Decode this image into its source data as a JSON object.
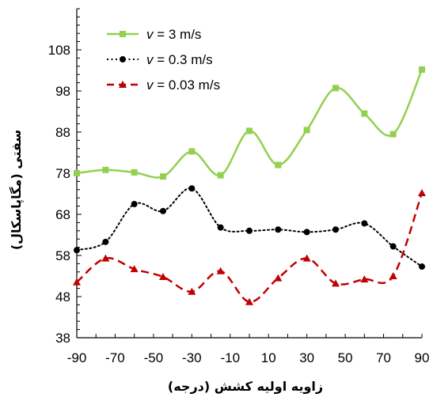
{
  "chart_data": {
    "type": "line",
    "xlabel": "زاویه اولیه کشش (درجه)",
    "ylabel": "سفتی (مگاپاسکال)",
    "xlim": [
      -90,
      90
    ],
    "ylim": [
      38,
      118
    ],
    "xticks": [
      -90,
      -70,
      -50,
      -30,
      -10,
      10,
      30,
      50,
      70,
      90
    ],
    "yticks": [
      38,
      48,
      58,
      68,
      78,
      88,
      98,
      108
    ],
    "grid": false,
    "legend_position": "top-left",
    "x": [
      -90,
      -75,
      -60,
      -45,
      -30,
      -15,
      0,
      15,
      30,
      45,
      60,
      75,
      90
    ],
    "series": [
      {
        "name": "v = 3 m/s",
        "name_italic": "v",
        "name_rest": " = 3 m/s",
        "color": "#92D050",
        "line_style": "solid",
        "marker": "square",
        "values": [
          78.0,
          78.8,
          78.2,
          77.2,
          83.3,
          77.5,
          88.3,
          80.0,
          88.5,
          98.7,
          92.5,
          87.5,
          103.2
        ]
      },
      {
        "name": "v = 0.3 m/s",
        "name_italic": "v",
        "name_rest": " = 0.3 m/s",
        "color": "#000000",
        "line_style": "dotted",
        "marker": "circle",
        "values": [
          59.3,
          61.3,
          70.5,
          68.8,
          74.3,
          64.8,
          64.0,
          64.3,
          63.7,
          64.3,
          65.8,
          60.2,
          55.3
        ]
      },
      {
        "name": "v = 0.03 m/s",
        "name_italic": "v",
        "name_rest": " = 0.03 m/s",
        "color": "#C00000",
        "line_style": "dashed",
        "marker": "triangle",
        "values": [
          51.5,
          57.3,
          54.7,
          52.8,
          49.2,
          54.2,
          46.7,
          52.5,
          57.3,
          51.2,
          52.2,
          53.0,
          73.2
        ]
      }
    ]
  }
}
